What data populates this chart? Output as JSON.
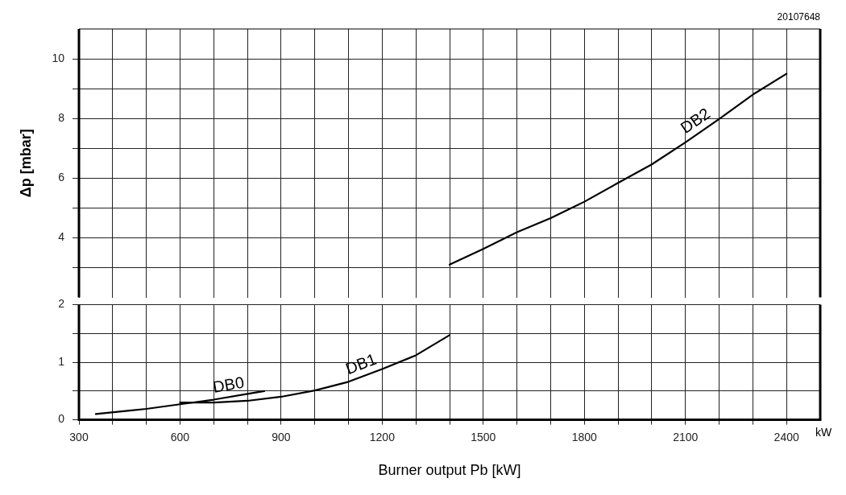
{
  "chart_data": [
    {
      "type": "line",
      "ylabel": "Δp [mbar]",
      "annotations": [
        "20107648"
      ],
      "tick_labels": "y",
      "xlim": [
        300,
        2500
      ],
      "ylim": [
        2,
        11
      ],
      "xticks": [
        300,
        {
          "value": 400,
          "label": null
        },
        {
          "value": 500,
          "label": null
        },
        600,
        {
          "value": 700,
          "label": null
        },
        {
          "value": 800,
          "label": null
        },
        900,
        {
          "value": 1000,
          "label": null
        },
        {
          "value": 1100,
          "label": null
        },
        1200,
        {
          "value": 1300,
          "label": null
        },
        {
          "value": 1400,
          "label": null
        },
        1500,
        {
          "value": 1600,
          "label": null
        },
        {
          "value": 1700,
          "label": null
        },
        1800,
        {
          "value": 1900,
          "label": null
        },
        {
          "value": 2000,
          "label": null
        },
        2100,
        {
          "value": 2200,
          "label": null
        },
        {
          "value": 2300,
          "label": null
        },
        2400
      ],
      "yticks": [
        {
          "value": 3,
          "label": null
        },
        4,
        {
          "value": 5,
          "label": null
        },
        6,
        {
          "value": 7,
          "label": null
        },
        8,
        {
          "value": 9,
          "label": null
        },
        10
      ],
      "grid": true,
      "legend": false,
      "marker": "none",
      "line_style": "solid",
      "series": [
        {
          "name": "DB2",
          "color": "#000000",
          "x": [
            1400,
            1500,
            1600,
            1700,
            1800,
            1900,
            2000,
            2100,
            2200,
            2300,
            2400
          ],
          "values": [
            3.1,
            3.63,
            4.19,
            4.66,
            5.21,
            5.84,
            6.46,
            7.2,
            7.98,
            8.8,
            9.5
          ]
        }
      ]
    },
    {
      "type": "line",
      "xlabel": "Burner output Pb [kW]",
      "annotations": [
        "kW"
      ],
      "xlim": [
        300,
        2500
      ],
      "ylim": [
        0,
        2
      ],
      "xticks": [
        300,
        {
          "value": 400,
          "label": null
        },
        {
          "value": 500,
          "label": null
        },
        600,
        {
          "value": 700,
          "label": null
        },
        {
          "value": 800,
          "label": null
        },
        900,
        {
          "value": 1000,
          "label": null
        },
        {
          "value": 1100,
          "label": null
        },
        1200,
        {
          "value": 1300,
          "label": null
        },
        {
          "value": 1400,
          "label": null
        },
        1500,
        {
          "value": 1600,
          "label": null
        },
        {
          "value": 1700,
          "label": null
        },
        1800,
        {
          "value": 1900,
          "label": null
        },
        {
          "value": 2000,
          "label": null
        },
        2100,
        {
          "value": 2200,
          "label": null
        },
        {
          "value": 2300,
          "label": null
        },
        2400
      ],
      "yticks": [
        0,
        {
          "value": 0.5,
          "label": null
        },
        1,
        {
          "value": 1.5,
          "label": null
        },
        2
      ],
      "grid": true,
      "legend": false,
      "marker": "none",
      "line_style": "solid",
      "series": [
        {
          "name": "DB0",
          "color": "#000000",
          "x": [
            350,
            450,
            500,
            600,
            700,
            800,
            850
          ],
          "values": [
            0.1,
            0.16,
            0.19,
            0.27,
            0.35,
            0.45,
            0.5
          ]
        },
        {
          "name": "DB1",
          "color": "#000000",
          "x": [
            600,
            700,
            800,
            900,
            1000,
            1100,
            1200,
            1300,
            1400
          ],
          "values": [
            0.3,
            0.3,
            0.33,
            0.4,
            0.51,
            0.66,
            0.88,
            1.12,
            1.47
          ]
        }
      ]
    }
  ]
}
